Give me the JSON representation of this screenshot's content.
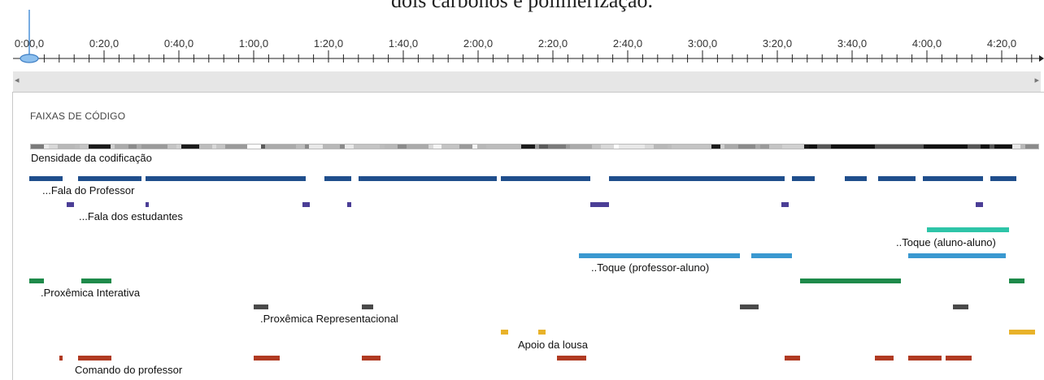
{
  "caption": "dois carbonos e polimerização.",
  "timeline": {
    "tick_labels": [
      "0:00,0",
      "0:20,0",
      "0:40,0",
      "1:00,0",
      "1:20,0",
      "1:40,0",
      "2:00,0",
      "2:20,0",
      "2:40,0",
      "3:00,0",
      "3:20,0",
      "3:40,0",
      "4:00,0",
      "4:20,0"
    ],
    "playhead_seconds": 0
  },
  "scrollbar": {
    "left_arrow": "◂",
    "right_arrow": "▸"
  },
  "panel": {
    "title": "FAIXAS DE CÓDIGO",
    "density_label": "Densidade da codificação"
  },
  "tracks": [
    {
      "label": "...Fala do Professor",
      "color": "#1f4e8c",
      "segments": [
        [
          0,
          9
        ],
        [
          13,
          30
        ],
        [
          31,
          74
        ],
        [
          79,
          86
        ],
        [
          88,
          125
        ],
        [
          126,
          150
        ],
        [
          155,
          202
        ],
        [
          204,
          210
        ],
        [
          218,
          224
        ],
        [
          227,
          237
        ],
        [
          239,
          255
        ],
        [
          257,
          264
        ],
        [
          272,
          276
        ]
      ]
    },
    {
      "label": "...Fala dos estudantes",
      "color": "#4b3e96",
      "segments": [
        [
          10,
          12
        ],
        [
          31,
          32
        ],
        [
          73,
          75
        ],
        [
          85,
          86
        ],
        [
          150,
          155
        ],
        [
          201,
          203
        ],
        [
          253,
          255
        ],
        [
          275,
          277
        ]
      ]
    },
    {
      "label": "..Toque (aluno-aluno)",
      "color": "#2ec4a8",
      "segments": [
        [
          240,
          262
        ]
      ]
    },
    {
      "label": "..Toque (professor-aluno)",
      "color": "#3a98d0",
      "segments": [
        [
          147,
          190
        ],
        [
          193,
          204
        ],
        [
          235,
          261
        ]
      ]
    },
    {
      "label": ".Proxêmica Interativa",
      "color": "#1e8a4a",
      "segments": [
        [
          0,
          4
        ],
        [
          14,
          22
        ],
        [
          206,
          233
        ],
        [
          262,
          266
        ]
      ]
    },
    {
      "label": ".Proxêmica Representacional",
      "color": "#4a4a4a",
      "segments": [
        [
          60,
          64
        ],
        [
          89,
          92
        ],
        [
          190,
          195
        ],
        [
          247,
          251
        ]
      ]
    },
    {
      "label": "Apoio da lousa",
      "color": "#e8b22a",
      "segments": [
        [
          126,
          128
        ],
        [
          136,
          138
        ],
        [
          262,
          269
        ]
      ]
    },
    {
      "label": "Comando do professor",
      "color": "#b03a22",
      "segments": [
        [
          8,
          9
        ],
        [
          13,
          22
        ],
        [
          60,
          67
        ],
        [
          89,
          94
        ],
        [
          141,
          149
        ],
        [
          202,
          206
        ],
        [
          226,
          231
        ],
        [
          235,
          244
        ],
        [
          245,
          252
        ]
      ]
    }
  ]
}
